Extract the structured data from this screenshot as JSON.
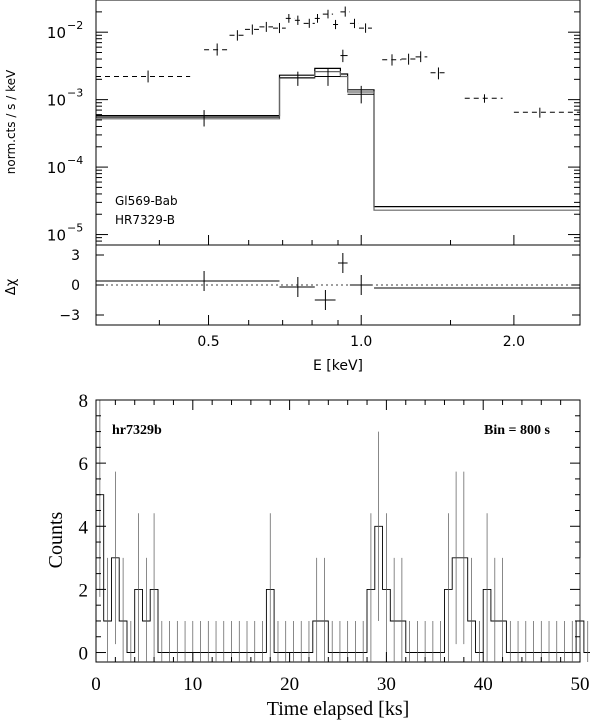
{
  "chart_data": [
    {
      "type": "line",
      "panel": "spectrum",
      "ylabel": "norm.cts / s / keV",
      "y_scale": "log",
      "x_scale": "log",
      "xlim": [
        0.3,
        2.7
      ],
      "ylim": [
        7e-06,
        0.03
      ],
      "y_ticks": [
        {
          "value": 0.01,
          "base": "10",
          "exp": "−2"
        },
        {
          "value": 0.001,
          "base": "10",
          "exp": "−3"
        },
        {
          "value": 0.0001,
          "base": "10",
          "exp": "−4"
        },
        {
          "value": 1e-05,
          "base": "10",
          "exp": "−5"
        }
      ],
      "annotations": [
        "Gl569-Bab",
        "HR7329-B"
      ],
      "series": [
        {
          "style": "dashed-crosses",
          "points": [
            {
              "x": 0.38,
              "xlo": 0.3,
              "xhi": 0.46,
              "y": 0.0022,
              "ylo": 0.0018,
              "yhi": 0.0027
            },
            {
              "x": 0.52,
              "xlo": 0.49,
              "xhi": 0.55,
              "y": 0.0055,
              "ylo": 0.0045,
              "yhi": 0.0068
            },
            {
              "x": 0.57,
              "xlo": 0.55,
              "xhi": 0.59,
              "y": 0.009,
              "ylo": 0.0075,
              "yhi": 0.0107
            },
            {
              "x": 0.61,
              "xlo": 0.59,
              "xhi": 0.63,
              "y": 0.011,
              "ylo": 0.0092,
              "yhi": 0.013
            },
            {
              "x": 0.65,
              "xlo": 0.63,
              "xhi": 0.67,
              "y": 0.012,
              "ylo": 0.0101,
              "yhi": 0.0142
            },
            {
              "x": 0.69,
              "xlo": 0.67,
              "xhi": 0.71,
              "y": 0.0115,
              "ylo": 0.0097,
              "yhi": 0.0137
            },
            {
              "x": 0.72,
              "xlo": 0.71,
              "xhi": 0.74,
              "y": 0.016,
              "ylo": 0.0138,
              "yhi": 0.0186
            },
            {
              "x": 0.75,
              "xlo": 0.74,
              "xhi": 0.77,
              "y": 0.015,
              "ylo": 0.0128,
              "yhi": 0.0176
            },
            {
              "x": 0.79,
              "xlo": 0.77,
              "xhi": 0.81,
              "y": 0.0135,
              "ylo": 0.0116,
              "yhi": 0.0158
            },
            {
              "x": 0.82,
              "xlo": 0.81,
              "xhi": 0.84,
              "y": 0.016,
              "ylo": 0.0138,
              "yhi": 0.0186
            },
            {
              "x": 0.86,
              "xlo": 0.84,
              "xhi": 0.88,
              "y": 0.0185,
              "ylo": 0.016,
              "yhi": 0.0215
            },
            {
              "x": 0.89,
              "xlo": 0.88,
              "xhi": 0.91,
              "y": 0.013,
              "ylo": 0.0111,
              "yhi": 0.0152
            },
            {
              "x": 0.93,
              "xlo": 0.91,
              "xhi": 0.95,
              "y": 0.02,
              "ylo": 0.017,
              "yhi": 0.024
            },
            {
              "x": 0.97,
              "xlo": 0.95,
              "xhi": 0.99,
              "y": 0.0135,
              "ylo": 0.0115,
              "yhi": 0.0158
            },
            {
              "x": 1.02,
              "xlo": 0.99,
              "xhi": 1.05,
              "y": 0.0115,
              "ylo": 0.0098,
              "yhi": 0.0135
            },
            {
              "x": 1.15,
              "xlo": 1.1,
              "xhi": 1.2,
              "y": 0.0039,
              "ylo": 0.0032,
              "yhi": 0.0047
            },
            {
              "x": 1.24,
              "xlo": 1.2,
              "xhi": 1.28,
              "y": 0.004,
              "ylo": 0.0033,
              "yhi": 0.0048
            },
            {
              "x": 1.31,
              "xlo": 1.28,
              "xhi": 1.35,
              "y": 0.0043,
              "ylo": 0.0036,
              "yhi": 0.0052
            },
            {
              "x": 1.42,
              "xlo": 1.37,
              "xhi": 1.47,
              "y": 0.0025,
              "ylo": 0.002,
              "yhi": 0.003
            },
            {
              "x": 1.75,
              "xlo": 1.6,
              "xhi": 1.9,
              "y": 0.00105,
              "ylo": 0.0009,
              "yhi": 0.0012
            },
            {
              "x": 2.25,
              "xlo": 2.0,
              "xhi": 2.7,
              "y": 0.00065,
              "ylo": 0.00054,
              "yhi": 0.00076
            }
          ]
        },
        {
          "style": "solid-crosses",
          "points": [
            {
              "x": 0.49,
              "xlo": 0.3,
              "xhi": 0.69,
              "y": 0.00055,
              "ylo": 0.0004,
              "yhi": 0.0007
            },
            {
              "x": 0.75,
              "xlo": 0.69,
              "xhi": 0.81,
              "y": 0.0021,
              "ylo": 0.0016,
              "yhi": 0.0026
            },
            {
              "x": 0.86,
              "xlo": 0.81,
              "xhi": 0.91,
              "y": 0.0022,
              "ylo": 0.0016,
              "yhi": 0.0029
            },
            {
              "x": 0.92,
              "xlo": 0.91,
              "xhi": 0.94,
              "y": 0.0045,
              "ylo": 0.0036,
              "yhi": 0.0055
            },
            {
              "x": 1.0,
              "xlo": 0.94,
              "xhi": 1.06,
              "y": 0.0012,
              "ylo": 0.00088,
              "yhi": 0.0016
            }
          ]
        },
        {
          "style": "model-step-1",
          "edges": [
            0.3,
            0.69,
            0.81,
            0.91,
            0.94,
            1.06,
            2.7
          ],
          "values": [
            0.00058,
            0.0023,
            0.0029,
            0.0024,
            0.0014,
            2.6e-05
          ]
        },
        {
          "style": "model-step-2",
          "edges": [
            0.3,
            0.69,
            0.81,
            0.91,
            0.94,
            1.06,
            2.7
          ],
          "values": [
            0.00052,
            0.0021,
            0.0026,
            0.0022,
            0.0013,
            2.3e-05
          ]
        }
      ]
    },
    {
      "type": "scatter",
      "panel": "residuals",
      "ylabel": "Δχ",
      "xlabel": "E [keV]",
      "x_scale": "log",
      "xlim": [
        0.3,
        2.7
      ],
      "ylim": [
        -4,
        4
      ],
      "y_ticks": [
        3,
        0,
        -3
      ],
      "x_ticks": [
        {
          "value": 0.5,
          "label": "0.5"
        },
        {
          "value": 1.0,
          "label": "1.0"
        },
        {
          "value": 2.0,
          "label": "2.0"
        }
      ],
      "points": [
        {
          "x": 0.49,
          "xlo": 0.3,
          "xhi": 0.69,
          "y": 0.4,
          "ylo": -0.6,
          "yhi": 1.4
        },
        {
          "x": 0.75,
          "xlo": 0.69,
          "xhi": 0.81,
          "y": -0.2,
          "ylo": -1.2,
          "yhi": 0.8
        },
        {
          "x": 0.85,
          "xlo": 0.81,
          "xhi": 0.89,
          "y": -1.5,
          "ylo": -2.5,
          "yhi": -0.5
        },
        {
          "x": 0.92,
          "xlo": 0.9,
          "xhi": 0.94,
          "y": 2.2,
          "ylo": 1.2,
          "yhi": 3.2
        },
        {
          "x": 1.0,
          "xlo": 0.95,
          "xhi": 1.05,
          "y": 0.0,
          "ylo": -1.0,
          "yhi": 1.0
        },
        {
          "x": 1.6,
          "xlo": 1.06,
          "xhi": 2.7,
          "y": -0.3,
          "ylo": -0.3,
          "yhi": -0.3
        }
      ]
    },
    {
      "type": "line",
      "panel": "light-curve",
      "xlabel": "Time elapsed [ks]",
      "ylabel": "Counts",
      "xlim": [
        0,
        50
      ],
      "ylim": [
        -0.3,
        8
      ],
      "x_ticks": [
        0,
        10,
        20,
        30,
        40,
        50
      ],
      "y_ticks": [
        0,
        2,
        4,
        6,
        8
      ],
      "annotations": [
        "hr7329b",
        "Bin = 800 s"
      ],
      "bin_width": 0.8,
      "counts": [
        5,
        1,
        3,
        1,
        0,
        2,
        1,
        2,
        0,
        0,
        0,
        0,
        0,
        0,
        0,
        0,
        0,
        0,
        0,
        0,
        0,
        0,
        2,
        0,
        0,
        0,
        0,
        0,
        1,
        1,
        0,
        0,
        0,
        0,
        0,
        2,
        4,
        2,
        1,
        1,
        0,
        0,
        0,
        0,
        0,
        2,
        3,
        3,
        1,
        0,
        2,
        1,
        1,
        0,
        0,
        0,
        0,
        0,
        0,
        0,
        0,
        0,
        1,
        0,
        2,
        1,
        2,
        3,
        2,
        0,
        0,
        0,
        0,
        0,
        0,
        0,
        0,
        0,
        0,
        0,
        0,
        1,
        1,
        1,
        1,
        1,
        1,
        0,
        2,
        0,
        0
      ]
    }
  ]
}
